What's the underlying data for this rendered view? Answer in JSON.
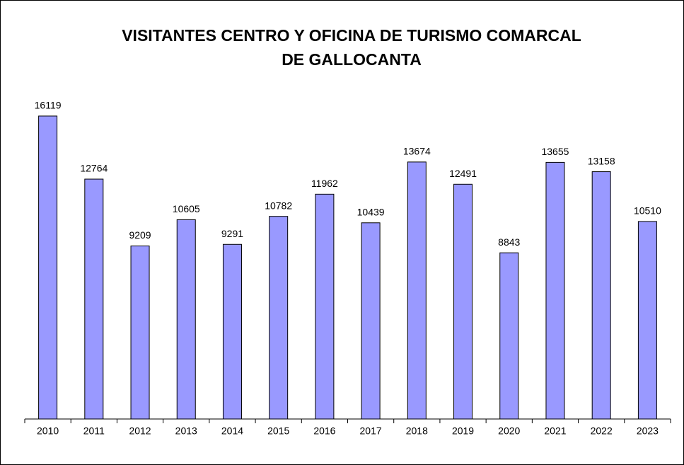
{
  "chart_data": {
    "type": "bar",
    "title": [
      "VISITANTES CENTRO Y OFICINA DE TURISMO COMARCAL",
      "DE GALLOCANTA"
    ],
    "categories": [
      "2010",
      "2011",
      "2012",
      "2013",
      "2014",
      "2015",
      "2016",
      "2017",
      "2018",
      "2019",
      "2020",
      "2021",
      "2022",
      "2023"
    ],
    "values": [
      16119,
      12764,
      9209,
      10605,
      9291,
      10782,
      11962,
      10439,
      13674,
      12491,
      8843,
      13655,
      13158,
      10510
    ],
    "color": "#9999ff",
    "ylim": [
      0,
      18000
    ]
  }
}
